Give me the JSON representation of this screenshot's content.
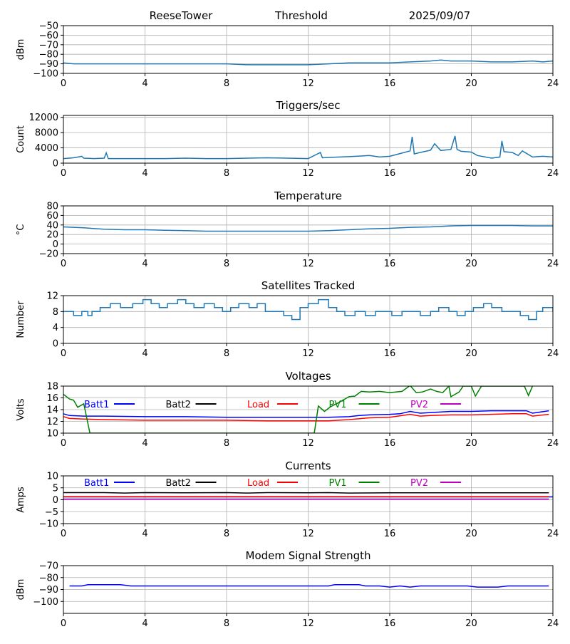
{
  "header": {
    "station": "ReeseTower",
    "subtitle": "Threshold",
    "date": "2025/09/07"
  },
  "x_ticks": [
    0,
    4,
    8,
    12,
    16,
    20,
    24
  ],
  "chart_data": [
    {
      "type": "line",
      "title": "",
      "ylabel": "dBm",
      "xlim": [
        0,
        24
      ],
      "ylim": [
        -100,
        -50
      ],
      "yticks": [
        -100,
        -90,
        -80,
        -70,
        -60,
        -50
      ],
      "grid": true,
      "series": [
        {
          "color": "#1f77b4",
          "x": [
            0,
            0.5,
            1,
            2,
            3,
            4,
            5,
            6,
            7,
            8,
            9,
            10,
            11,
            12,
            13,
            14,
            15,
            16,
            17,
            18,
            18.5,
            19,
            20,
            21,
            22,
            23,
            23.5,
            24
          ],
          "values": [
            -89,
            -90,
            -90,
            -90,
            -90,
            -90,
            -90,
            -90,
            -90,
            -90,
            -91,
            -91,
            -91,
            -91,
            -90,
            -89,
            -89,
            -89,
            -88,
            -87,
            -86,
            -87,
            -87,
            -88,
            -88,
            -87,
            -88,
            -87
          ]
        }
      ]
    },
    {
      "type": "line",
      "title": "Triggers/sec",
      "ylabel": "Count",
      "xlim": [
        0,
        24
      ],
      "ylim": [
        0,
        12500
      ],
      "yticks": [
        0,
        4000,
        8000,
        12000
      ],
      "grid": true,
      "series": [
        {
          "color": "#1f77b4",
          "x": [
            0,
            0.5,
            0.9,
            1,
            1.5,
            2,
            2.1,
            2.2,
            3,
            4,
            5,
            6,
            7,
            8,
            9,
            10,
            11,
            12,
            12.6,
            12.7,
            13,
            14,
            15,
            15.5,
            16,
            16.5,
            17,
            17.1,
            17.2,
            17.5,
            18,
            18.2,
            18.5,
            19,
            19.2,
            19.3,
            19.5,
            20,
            20.3,
            21,
            21.4,
            21.5,
            21.6,
            22,
            22.3,
            22.5,
            23,
            23.5,
            24
          ],
          "values": [
            1200,
            1400,
            1800,
            1300,
            1200,
            1300,
            2700,
            1200,
            1200,
            1200,
            1200,
            1300,
            1200,
            1200,
            1300,
            1400,
            1300,
            1200,
            2800,
            1400,
            1500,
            1700,
            2000,
            1600,
            1800,
            2500,
            3200,
            6900,
            2400,
            2800,
            3400,
            5100,
            3300,
            3600,
            7100,
            3600,
            3100,
            2900,
            2000,
            1300,
            1600,
            5800,
            3000,
            2800,
            2000,
            3200,
            1600,
            1800,
            1600
          ]
        }
      ]
    },
    {
      "type": "line",
      "title": "Temperature",
      "ylabel": "°C",
      "xlim": [
        0,
        24
      ],
      "ylim": [
        -20,
        80
      ],
      "yticks": [
        -20,
        0,
        20,
        40,
        60,
        80
      ],
      "grid": true,
      "series": [
        {
          "color": "#1f77b4",
          "x": [
            0,
            1,
            2,
            3,
            4,
            5,
            6,
            7,
            8,
            9,
            10,
            11,
            12,
            13,
            14,
            15,
            16,
            17,
            18,
            19,
            20,
            21,
            22,
            23,
            24
          ],
          "values": [
            36,
            34,
            31,
            30,
            30,
            29,
            28,
            27,
            27,
            27,
            27,
            27,
            27,
            28,
            30,
            32,
            33,
            35,
            36,
            38,
            39,
            39,
            39,
            38,
            38
          ]
        }
      ]
    },
    {
      "type": "line",
      "title": "Satellites Tracked",
      "ylabel": "Number",
      "xlim": [
        0,
        24
      ],
      "ylim": [
        0,
        12
      ],
      "yticks": [
        0,
        4,
        8,
        12
      ],
      "grid": true,
      "series": [
        {
          "color": "#1f77b4",
          "step": true,
          "x": [
            0,
            0.5,
            0.9,
            1.2,
            1.4,
            1.8,
            2.3,
            2.8,
            3.4,
            3.9,
            4.3,
            4.7,
            5.1,
            5.6,
            6.0,
            6.4,
            6.9,
            7.4,
            7.8,
            8.2,
            8.6,
            9.1,
            9.5,
            9.9,
            10.4,
            10.8,
            11.2,
            11.6,
            12.0,
            12.5,
            13.0,
            13.4,
            13.8,
            14.3,
            14.8,
            15.3,
            15.7,
            16.1,
            16.6,
            17.0,
            17.5,
            18.0,
            18.4,
            18.9,
            19.3,
            19.7,
            20.1,
            20.6,
            21.0,
            21.5,
            22.0,
            22.4,
            22.8,
            23.2,
            23.5,
            24
          ],
          "values": [
            8,
            7,
            8,
            7,
            8,
            9,
            10,
            9,
            10,
            11,
            10,
            9,
            10,
            11,
            10,
            9,
            10,
            9,
            8,
            9,
            10,
            9,
            10,
            8,
            8,
            7,
            6,
            9,
            10,
            11,
            9,
            8,
            7,
            8,
            7,
            8,
            8,
            7,
            8,
            8,
            7,
            8,
            9,
            8,
            7,
            8,
            9,
            10,
            9,
            8,
            8,
            7,
            6,
            8,
            9,
            8
          ]
        }
      ]
    },
    {
      "type": "line",
      "title": "Voltages",
      "ylabel": "Volts",
      "xlim": [
        0,
        24
      ],
      "ylim": [
        10,
        18
      ],
      "yticks": [
        10,
        12,
        14,
        16,
        18
      ],
      "grid": true,
      "legend": "top, single row",
      "series": [
        {
          "name": "Batt1",
          "color": "#0000ff",
          "x": [
            0,
            0.3,
            1,
            2,
            4,
            6,
            8,
            10,
            12,
            13,
            14,
            14.5,
            15,
            16,
            16.5,
            17,
            17.5,
            18,
            19,
            20,
            21,
            22,
            22.7,
            23,
            23.8
          ],
          "values": [
            13.3,
            13.0,
            12.9,
            12.9,
            12.8,
            12.8,
            12.7,
            12.7,
            12.7,
            12.7,
            12.8,
            13.0,
            13.1,
            13.2,
            13.3,
            13.7,
            13.4,
            13.5,
            13.7,
            13.7,
            13.8,
            13.8,
            13.8,
            13.4,
            13.8
          ]
        },
        {
          "name": "Batt2",
          "color": "#000000",
          "x": [],
          "values": []
        },
        {
          "name": "Load",
          "color": "#ff0000",
          "x": [
            0,
            0.3,
            1,
            2,
            4,
            6,
            8,
            10,
            12,
            13,
            14,
            15,
            16,
            17,
            17.5,
            18,
            19,
            20,
            21,
            22,
            22.7,
            23,
            23.8
          ],
          "values": [
            12.8,
            12.5,
            12.4,
            12.3,
            12.2,
            12.2,
            12.2,
            12.1,
            12.1,
            12.1,
            12.3,
            12.6,
            12.7,
            13.2,
            12.9,
            13.0,
            13.1,
            13.1,
            13.2,
            13.3,
            13.3,
            12.9,
            13.2
          ]
        },
        {
          "name": "PV1",
          "color": "#008000",
          "x": [
            0,
            0.3,
            0.5,
            0.7,
            1.0,
            1.3,
            12.3,
            12.5,
            12.8,
            13.1,
            13.5,
            14.0,
            14.3,
            14.6,
            15.0,
            15.5,
            16.0,
            16.6,
            17.0,
            17.3,
            17.6,
            18.0,
            18.3,
            18.6,
            18.9,
            19.0,
            19.4,
            19.6,
            20.0,
            20.2,
            20.5,
            22.6,
            22.8,
            23.0
          ],
          "values": [
            16.6,
            15.8,
            15.6,
            14.4,
            15.0,
            10.0,
            10.0,
            14.6,
            13.7,
            14.5,
            15.2,
            16.2,
            16.3,
            17.1,
            17.0,
            17.1,
            16.9,
            17.1,
            18.1,
            16.9,
            17.0,
            17.5,
            17.1,
            16.9,
            18.0,
            16.2,
            17.0,
            18.0,
            18.0,
            16.3,
            18.0,
            18.0,
            16.4,
            18.0
          ]
        },
        {
          "name": "PV2",
          "color": "#bf00bf",
          "x": [],
          "values": []
        }
      ]
    },
    {
      "type": "line",
      "title": "Currents",
      "ylabel": "Amps",
      "xlim": [
        0,
        24
      ],
      "ylim": [
        -10,
        10
      ],
      "yticks": [
        -10,
        -5,
        0,
        5,
        10
      ],
      "grid": true,
      "legend": "top, single row",
      "series": [
        {
          "name": "Batt1",
          "color": "#0000ff",
          "x": [
            0,
            24
          ],
          "values": [
            1.2,
            1.2
          ]
        },
        {
          "name": "Batt2",
          "color": "#000000",
          "x": [
            0,
            2,
            3,
            4,
            6,
            8,
            9,
            10,
            12,
            13,
            14,
            16,
            18,
            20,
            22,
            23.8
          ],
          "values": [
            3.0,
            3.0,
            2.8,
            3.0,
            2.9,
            3.0,
            2.8,
            3.0,
            2.9,
            3.0,
            2.8,
            2.9,
            2.9,
            2.9,
            2.9,
            2.9
          ]
        },
        {
          "name": "Load",
          "color": "#ff0000",
          "x": [
            0,
            23.8
          ],
          "values": [
            1.3,
            1.3
          ]
        },
        {
          "name": "PV1",
          "color": "#008000",
          "x": [
            0,
            23.8
          ],
          "values": [
            0.3,
            0.3
          ]
        },
        {
          "name": "PV2",
          "color": "#bf00bf",
          "x": [
            0,
            23.8
          ],
          "values": [
            0.2,
            0.2
          ]
        }
      ]
    },
    {
      "type": "line",
      "title": "Modem Signal Strength",
      "ylabel": "dBm",
      "xlim": [
        0,
        24
      ],
      "ylim": [
        -110,
        -70
      ],
      "yticks": [
        -100,
        -90,
        -80,
        -70
      ],
      "grid": true,
      "series": [
        {
          "color": "#0000ff",
          "x": [
            0.3,
            0.9,
            1.2,
            2.8,
            3.3,
            13.0,
            13.3,
            14.5,
            14.8,
            15.5,
            16.0,
            16.5,
            17.0,
            17.5,
            19.8,
            20.3,
            21.3,
            21.8,
            23.8
          ],
          "values": [
            -87,
            -87,
            -86,
            -86,
            -87,
            -87,
            -86,
            -86,
            -87,
            -87,
            -88,
            -87,
            -88,
            -87,
            -87,
            -88,
            -88,
            -87,
            -87
          ]
        }
      ]
    }
  ]
}
